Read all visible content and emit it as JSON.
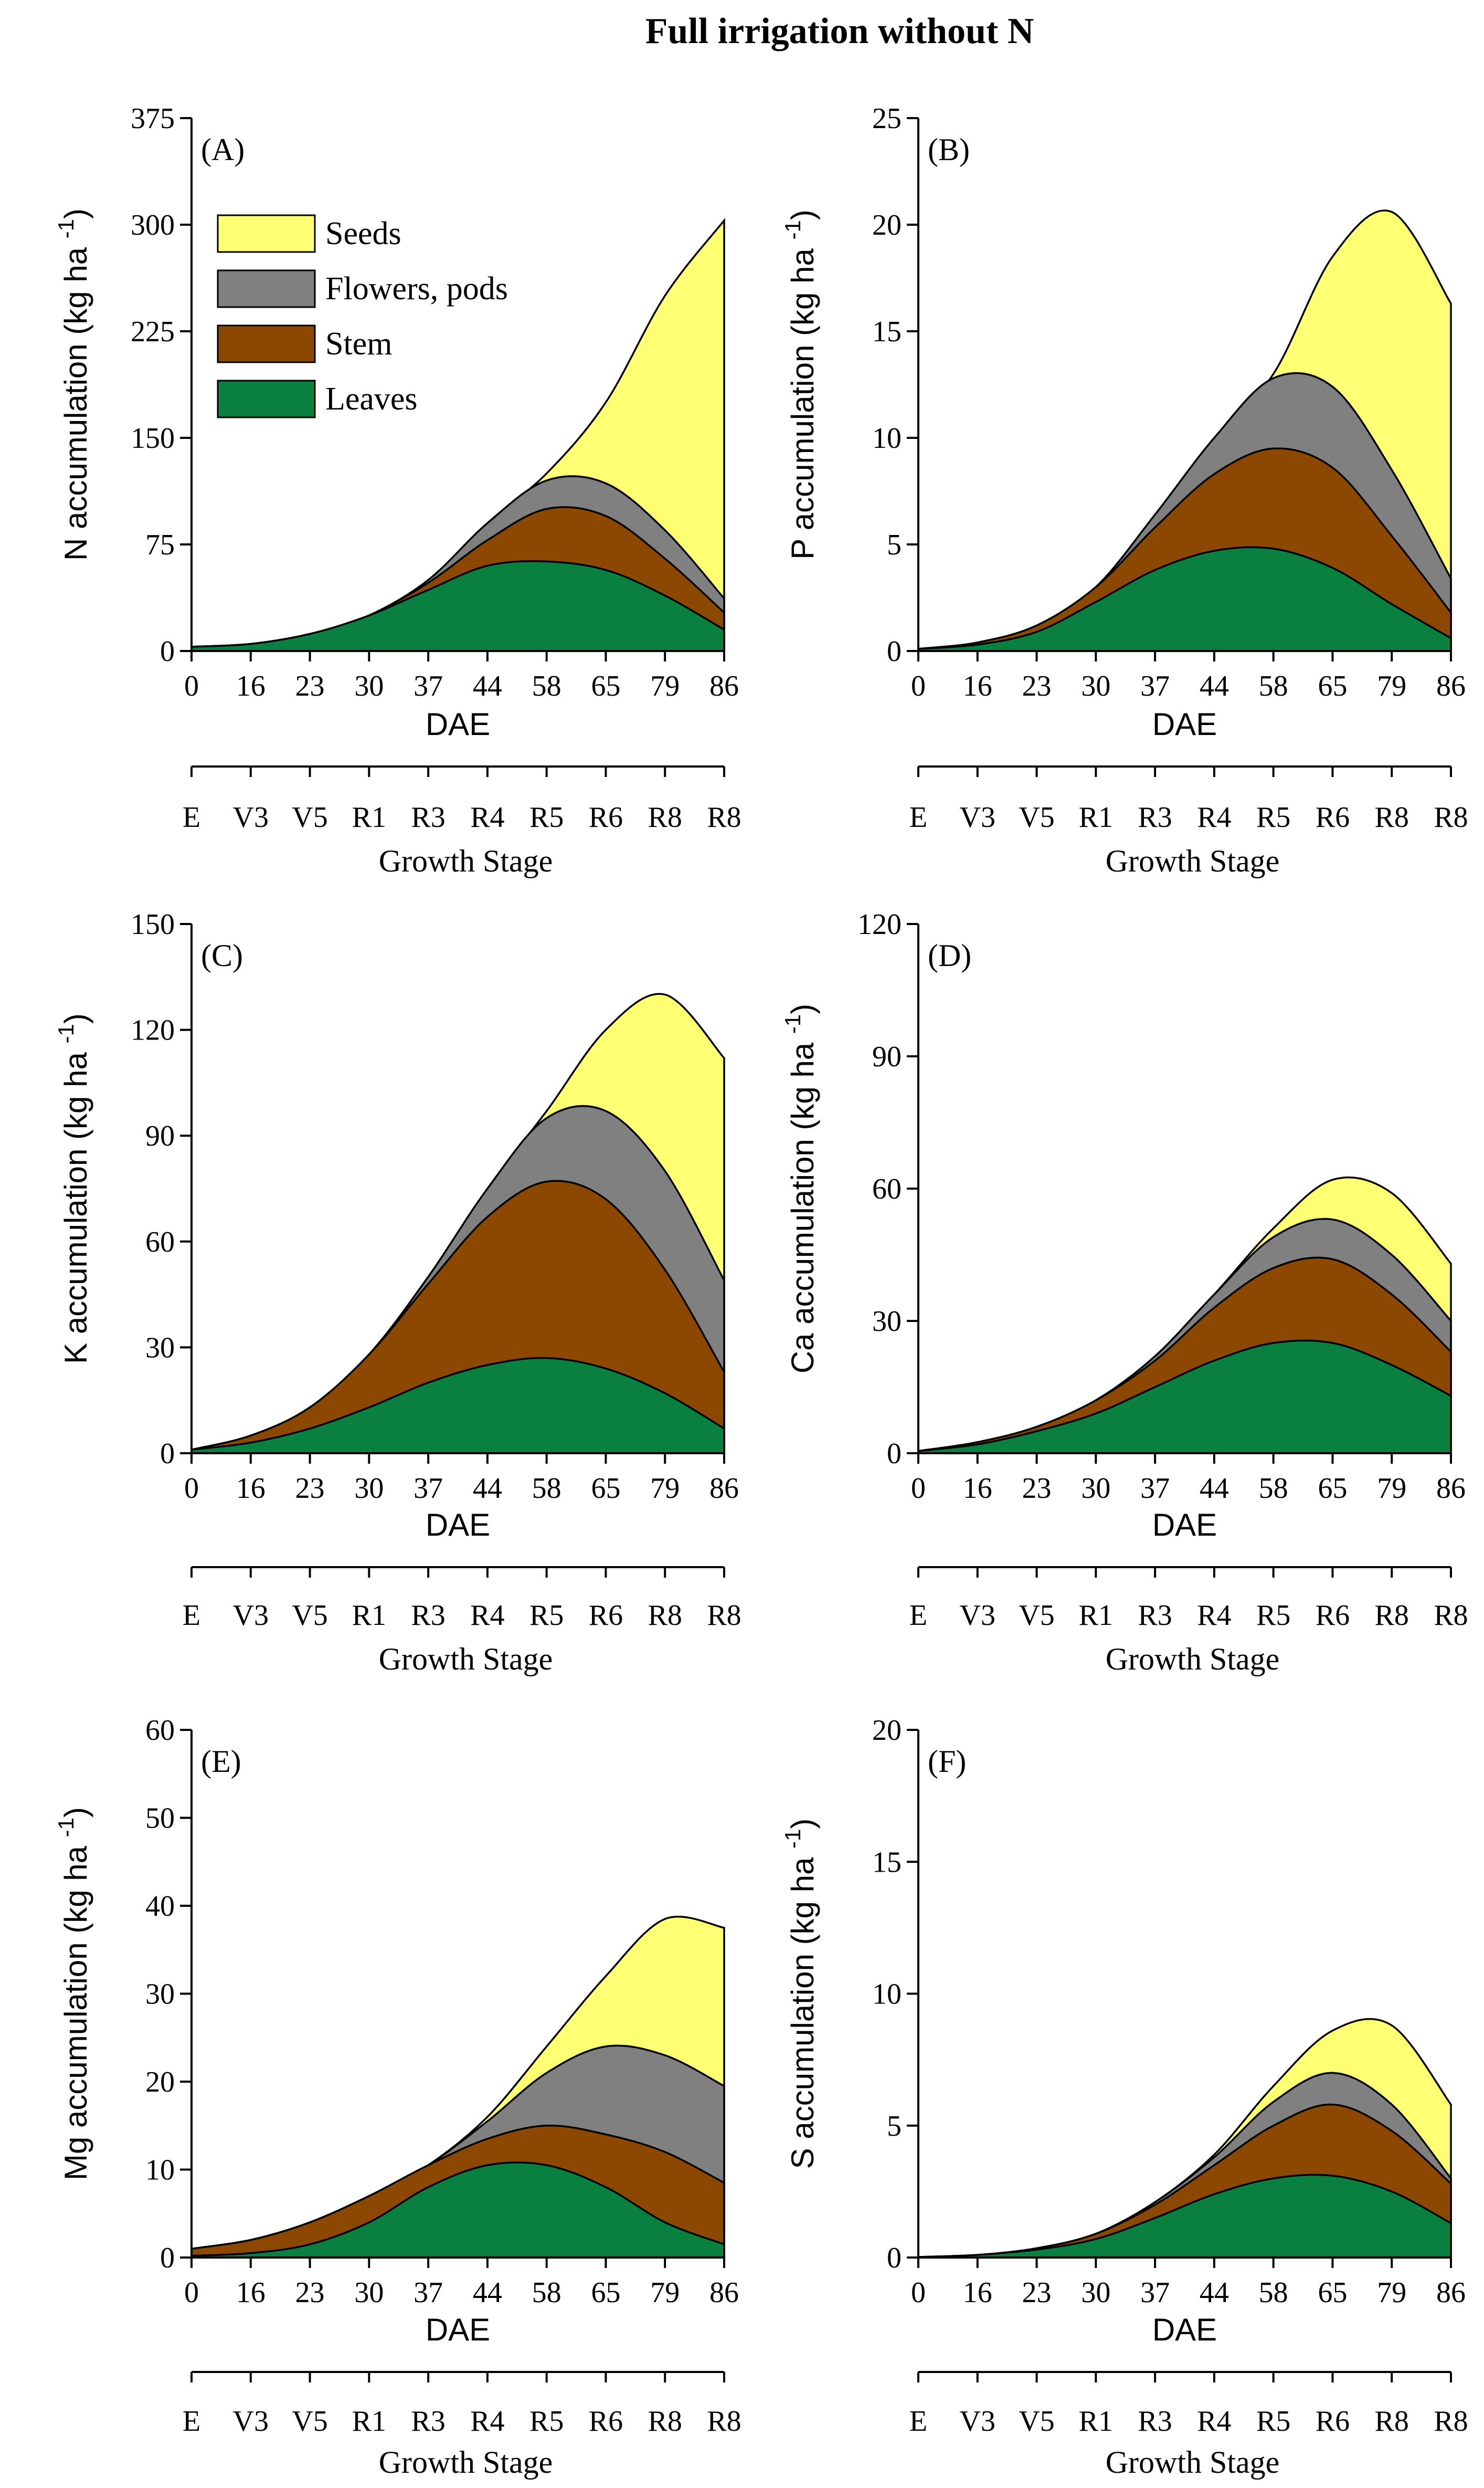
{
  "title": "Full irrigation without N",
  "colors": {
    "Seeds": "#ffff73",
    "Flowers, pods": "#808080",
    "Stem": "#8c4700",
    "Leaves": "#0a8040"
  },
  "legend": [
    "Seeds",
    "Flowers, pods",
    "Stem",
    "Leaves"
  ],
  "chart_data": [
    {
      "type": "area",
      "panel": "(A)",
      "ylabel": "N  accumulation (kg ha-1)",
      "yticks": [
        "0",
        "75",
        "150",
        "225",
        "300",
        "375"
      ],
      "ylim": [
        0,
        375
      ],
      "xlabel": "DAE",
      "xticks": [
        "0",
        "16",
        "23",
        "30",
        "37",
        "44",
        "58",
        "65",
        "79",
        "86"
      ],
      "stage_label": "Growth Stage",
      "stages": [
        "E",
        "V3",
        "V5",
        "R1",
        "R3",
        "R4",
        "R5",
        "R6",
        "R8",
        "R8"
      ],
      "series": [
        {
          "name": "Leaves",
          "values": [
            3,
            5,
            12,
            25,
            43,
            60,
            63,
            57,
            39,
            15
          ]
        },
        {
          "name": "Stem",
          "values": [
            3,
            5,
            12,
            25,
            48,
            78,
            100,
            95,
            65,
            27
          ]
        },
        {
          "name": "Flowers, pods",
          "values": [
            3,
            5,
            12,
            25,
            50,
            90,
            120,
            118,
            85,
            37
          ]
        },
        {
          "name": "Seeds",
          "values": [
            3,
            5,
            12,
            25,
            50,
            90,
            125,
            175,
            250,
            303
          ]
        }
      ]
    },
    {
      "type": "area",
      "panel": "(B)",
      "ylabel": "P  accumulation (kg ha-1)",
      "yticks": [
        "0",
        "5",
        "10",
        "15",
        "20",
        "25"
      ],
      "ylim": [
        0,
        25
      ],
      "xlabel": "DAE",
      "xticks": [
        "0",
        "16",
        "23",
        "30",
        "37",
        "44",
        "58",
        "65",
        "79",
        "86"
      ],
      "stage_label": "Growth Stage",
      "stages": [
        "E",
        "V3",
        "V5",
        "R1",
        "R3",
        "R4",
        "R5",
        "R6",
        "R8",
        "R8"
      ],
      "series": [
        {
          "name": "Leaves",
          "values": [
            0.1,
            0.3,
            0.9,
            2.3,
            3.8,
            4.7,
            4.8,
            3.9,
            2.2,
            0.6
          ]
        },
        {
          "name": "Stem",
          "values": [
            0.1,
            0.4,
            1.2,
            3.0,
            5.8,
            8.3,
            9.5,
            8.6,
            5.4,
            1.8
          ]
        },
        {
          "name": "Flowers, pods",
          "values": [
            0.1,
            0.4,
            1.2,
            3.0,
            6.4,
            10.0,
            12.8,
            12.4,
            8.5,
            3.4
          ]
        },
        {
          "name": "Seeds",
          "values": [
            0.1,
            0.4,
            1.2,
            3.0,
            6.4,
            10.0,
            13.0,
            18.5,
            20.6,
            16.3
          ]
        }
      ]
    },
    {
      "type": "area",
      "panel": "(C)",
      "ylabel": "K  accumulation (kg ha-1)",
      "yticks": [
        "0",
        "30",
        "60",
        "90",
        "120",
        "150"
      ],
      "ylim": [
        0,
        150
      ],
      "xlabel": "DAE",
      "xticks": [
        "0",
        "16",
        "23",
        "30",
        "37",
        "44",
        "58",
        "65",
        "79",
        "86"
      ],
      "stage_label": "Growth Stage",
      "stages": [
        "E",
        "V3",
        "V5",
        "R1",
        "R3",
        "R4",
        "R5",
        "R6",
        "R8",
        "R8"
      ],
      "series": [
        {
          "name": "Leaves",
          "values": [
            1,
            3,
            7,
            13,
            20,
            25,
            27,
            24,
            17,
            7
          ]
        },
        {
          "name": "Stem",
          "values": [
            1,
            5,
            13,
            28,
            48,
            67,
            77,
            72,
            52,
            23
          ]
        },
        {
          "name": "Flowers, pods",
          "values": [
            1,
            5,
            13,
            28,
            50,
            75,
            95,
            97,
            80,
            49
          ]
        },
        {
          "name": "Seeds",
          "values": [
            1,
            5,
            13,
            28,
            50,
            75,
            97,
            120,
            130,
            112
          ]
        }
      ]
    },
    {
      "type": "area",
      "panel": "(D)",
      "ylabel": "Ca  accumulation (kg ha-1)",
      "yticks": [
        "0",
        "30",
        "60",
        "90",
        "120"
      ],
      "ylim": [
        0,
        120
      ],
      "xlabel": "DAE",
      "xticks": [
        "0",
        "16",
        "23",
        "30",
        "37",
        "44",
        "58",
        "65",
        "79",
        "86"
      ],
      "stage_label": "Growth Stage",
      "stages": [
        "E",
        "V3",
        "V5",
        "R1",
        "R3",
        "R4",
        "R5",
        "R6",
        "R8",
        "R8"
      ],
      "series": [
        {
          "name": "Leaves",
          "values": [
            0.5,
            2,
            5,
            9,
            15,
            21,
            25,
            25,
            20,
            13
          ]
        },
        {
          "name": "Stem",
          "values": [
            0.5,
            2.5,
            6,
            12,
            21,
            33,
            42,
            44,
            36,
            23
          ]
        },
        {
          "name": "Flowers, pods",
          "values": [
            0.5,
            2.5,
            6,
            12,
            22,
            36,
            49,
            53,
            45,
            30
          ]
        },
        {
          "name": "Seeds",
          "values": [
            0.5,
            2.5,
            6,
            12,
            22,
            36,
            51,
            62,
            59,
            43
          ]
        }
      ]
    },
    {
      "type": "area",
      "panel": "(E)",
      "ylabel": "Mg  accumulation (kg ha-1)",
      "yticks": [
        "0",
        "10",
        "20",
        "30",
        "40",
        "50",
        "60"
      ],
      "ylim": [
        0,
        60
      ],
      "xlabel": "DAE",
      "xticks": [
        "0",
        "16",
        "23",
        "30",
        "37",
        "44",
        "58",
        "65",
        "79",
        "86"
      ],
      "stage_label": "Growth Stage",
      "stages": [
        "E",
        "V3",
        "V5",
        "R1",
        "R3",
        "R4",
        "R5",
        "R6",
        "R8",
        "R8"
      ],
      "series": [
        {
          "name": "Leaves",
          "values": [
            0.2,
            0.5,
            1.5,
            4,
            8,
            10.5,
            10.5,
            8,
            4,
            1.5
          ]
        },
        {
          "name": "Stem",
          "values": [
            1,
            2,
            4,
            7,
            10.5,
            13.5,
            15,
            14,
            12,
            8.5
          ]
        },
        {
          "name": "Flowers, pods",
          "values": [
            1,
            2,
            4,
            7,
            10.5,
            15.5,
            21,
            24,
            23,
            19.5
          ]
        },
        {
          "name": "Seeds",
          "values": [
            1,
            2,
            4,
            7,
            10.5,
            16,
            24,
            32,
            38.5,
            37.5
          ]
        }
      ]
    },
    {
      "type": "area",
      "panel": "(F)",
      "ylabel": "S  accumulation (kg ha-1)",
      "yticks": [
        "0",
        "5",
        "10",
        "15",
        "20"
      ],
      "ylim": [
        0,
        20
      ],
      "xlabel": "DAE",
      "xticks": [
        "0",
        "16",
        "23",
        "30",
        "37",
        "44",
        "58",
        "65",
        "79",
        "86"
      ],
      "stage_label": "Growth Stage",
      "stages": [
        "E",
        "V3",
        "V5",
        "R1",
        "R3",
        "R4",
        "R5",
        "R6",
        "R8",
        "R8"
      ],
      "series": [
        {
          "name": "Leaves",
          "values": [
            0.02,
            0.1,
            0.3,
            0.7,
            1.5,
            2.4,
            3.0,
            3.1,
            2.5,
            1.3
          ]
        },
        {
          "name": "Stem",
          "values": [
            0.02,
            0.1,
            0.35,
            0.9,
            2.0,
            3.5,
            5.0,
            5.8,
            4.8,
            2.8
          ]
        },
        {
          "name": "Flowers, pods",
          "values": [
            0.02,
            0.1,
            0.35,
            0.9,
            2.1,
            3.8,
            5.9,
            7.0,
            5.8,
            3.0
          ]
        },
        {
          "name": "Seeds",
          "values": [
            0.02,
            0.1,
            0.35,
            0.9,
            2.1,
            3.9,
            6.5,
            8.6,
            8.8,
            5.8
          ]
        }
      ]
    }
  ]
}
